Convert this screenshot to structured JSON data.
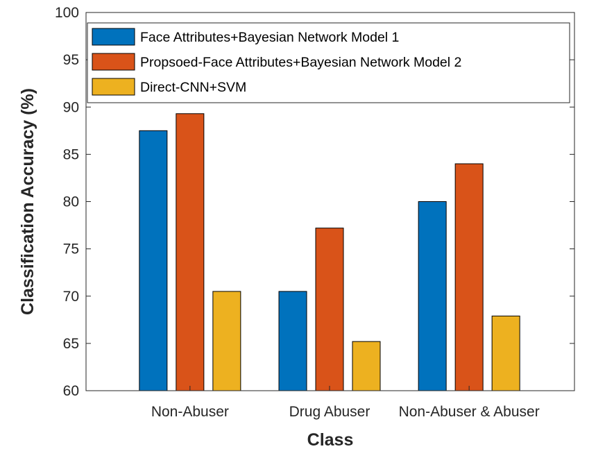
{
  "chart_data": {
    "type": "bar",
    "title": "",
    "xlabel": "Class",
    "ylabel": "Classification Accuracy (%)",
    "categories": [
      "Non-Abuser",
      "Drug Abuser",
      "Non-Abuser & Abuser"
    ],
    "ylim": [
      60,
      100
    ],
    "yticks": [
      60,
      65,
      70,
      75,
      80,
      85,
      90,
      95,
      100
    ],
    "grid": false,
    "legend_position": "top",
    "series": [
      {
        "name": "Face Attributes+Bayesian Network Model 1",
        "color": "#0072BD",
        "values": [
          87.5,
          70.5,
          80.0
        ]
      },
      {
        "name": "Propsoed-Face Attributes+Bayesian Network Model 2",
        "color": "#D95319",
        "values": [
          89.3,
          77.2,
          84.0
        ]
      },
      {
        "name": "Direct-CNN+SVM",
        "color": "#EDB120",
        "values": [
          70.5,
          65.2,
          67.9
        ]
      }
    ]
  }
}
